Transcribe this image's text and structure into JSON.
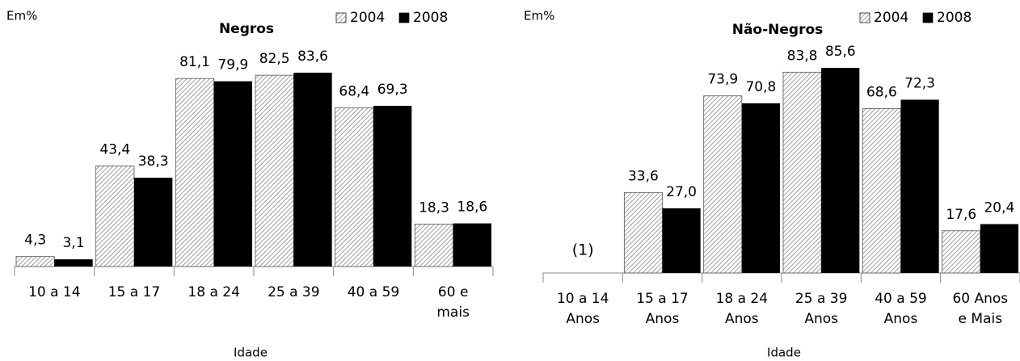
{
  "chart_data": [
    {
      "type": "bar",
      "title": "Negros",
      "y_label": "Em%",
      "x_label": "Idade",
      "categories": [
        "10 a 14",
        "15 a 17",
        "18 a 24",
        "25 a 39",
        "40 a 59",
        "60 e mais"
      ],
      "series": [
        {
          "name": "2004",
          "color": "#7f7f7f",
          "pattern": "hatch",
          "values": [
            4.3,
            43.4,
            81.1,
            82.5,
            68.4,
            18.3
          ],
          "value_labels": [
            "4,3",
            "43,4",
            "81,1",
            "82,5",
            "68,4",
            "18,3"
          ]
        },
        {
          "name": "2008",
          "color": "#000000",
          "values": [
            3.1,
            38.3,
            79.9,
            83.6,
            69.3,
            18.6
          ],
          "value_labels": [
            "3,1",
            "38,3",
            "79,9",
            "83,6",
            "69,3",
            "18,6"
          ]
        }
      ]
    },
    {
      "type": "bar",
      "title": "Não-Negros",
      "y_label": "Em%",
      "x_label": "Idade",
      "annotation": "(1)",
      "categories": [
        "10 a 14 Anos",
        "15 a 17 Anos",
        "18 a 24 Anos",
        "25 a 39 Anos",
        "40 a 59 Anos",
        "60 Anos e Mais"
      ],
      "series": [
        {
          "name": "2004",
          "color": "#7f7f7f",
          "pattern": "hatch",
          "values": [
            null,
            33.6,
            73.9,
            83.8,
            68.6,
            17.6
          ],
          "value_labels": [
            null,
            "33,6",
            "73,9",
            "83,8",
            "68,6",
            "17,6"
          ]
        },
        {
          "name": "2008",
          "color": "#000000",
          "values": [
            null,
            27.0,
            70.8,
            85.6,
            72.3,
            20.4
          ],
          "value_labels": [
            null,
            "27,0",
            "70,8",
            "85,6",
            "72,3",
            "20,4"
          ]
        }
      ]
    }
  ]
}
